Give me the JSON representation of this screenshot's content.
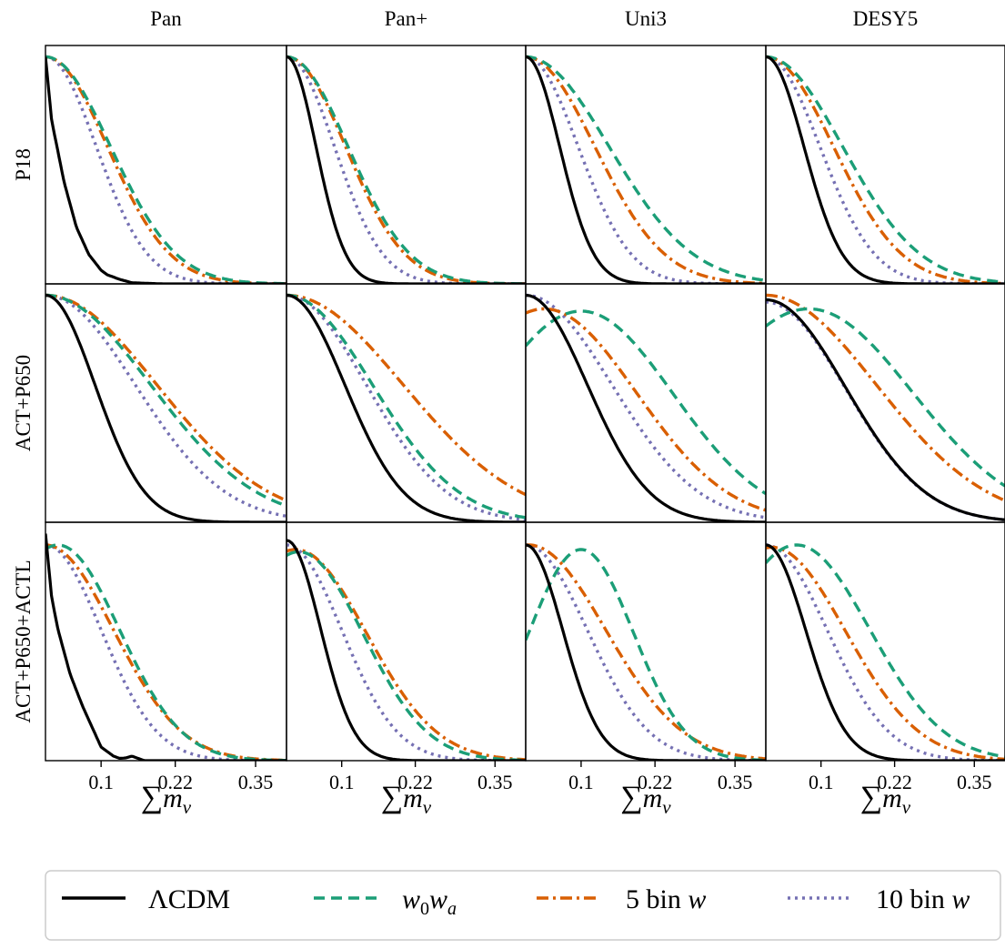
{
  "chart_data": {
    "type": "line",
    "columns": [
      "Pan",
      "Pan+",
      "Uni3",
      "DESY5"
    ],
    "rows": [
      "P18",
      "ACT+P650",
      "ACT+P650+ACTL"
    ],
    "xlabel": "∑m",
    "xlabel_sub": "ν",
    "xticks": [
      0.1,
      0.22,
      0.35
    ],
    "xtick_labels": [
      "0.1",
      "0.22",
      "0.35"
    ],
    "xlim": [
      0.01,
      0.4
    ],
    "ylim": [
      0,
      1.05
    ],
    "legend_position": "bottom",
    "series_styles": [
      {
        "key": "lcdm",
        "label": "ΛCDM",
        "color": "#000000",
        "dash": ""
      },
      {
        "key": "w0wa",
        "label": "w0wa",
        "color": "#1b9e77",
        "dash": "12,7"
      },
      {
        "key": "bin5",
        "label": "5 bin w",
        "color": "#d95f02",
        "dash": "13,5,3,5"
      },
      {
        "key": "bin10",
        "label": "10 bin w",
        "color": "#7570b3",
        "dash": "3,5"
      }
    ],
    "legend": {
      "lcdm": "ΛCDM",
      "w0wa_main": "w",
      "w0wa_sub1": "0",
      "w0wa_w2": "w",
      "w0wa_sub2": "a",
      "bin5_text": "5 bin ",
      "bin5_w": "w",
      "bin10_text": "10 bin ",
      "bin10_w": "w"
    },
    "panels": [
      [
        {
          "lcdm": {
            "type": "points",
            "x": [
              0.01,
              0.02,
              0.04,
              0.06,
              0.08,
              0.1,
              0.11,
              0.13,
              0.15,
              0.2
            ],
            "y": [
              1.0,
              0.72,
              0.45,
              0.25,
              0.13,
              0.06,
              0.04,
              0.02,
              0.005,
              0.0
            ]
          },
          "w0wa": {
            "type": "hn",
            "peak": 0.01,
            "sigma": 0.105,
            "amp": 1.0
          },
          "bin5": {
            "type": "hn",
            "peak": 0.01,
            "sigma": 0.1,
            "amp": 1.0
          },
          "bin10": {
            "type": "hn",
            "peak": 0.01,
            "sigma": 0.082,
            "amp": 1.0
          }
        },
        {
          "lcdm": {
            "type": "hn",
            "peak": 0.01,
            "sigma": 0.048,
            "amp": 1.0
          },
          "w0wa": {
            "type": "hn",
            "peak": 0.01,
            "sigma": 0.1,
            "amp": 1.0
          },
          "bin5": {
            "type": "hn",
            "peak": 0.01,
            "sigma": 0.096,
            "amp": 1.0
          },
          "bin10": {
            "type": "hn",
            "peak": 0.01,
            "sigma": 0.078,
            "amp": 1.0
          }
        },
        {
          "lcdm": {
            "type": "hn",
            "peak": 0.01,
            "sigma": 0.055,
            "amp": 1.0
          },
          "w0wa": {
            "type": "hn",
            "peak": 0.01,
            "sigma": 0.135,
            "amp": 1.0
          },
          "bin5": {
            "type": "hn",
            "peak": 0.01,
            "sigma": 0.112,
            "amp": 1.0
          },
          "bin10": {
            "type": "hn",
            "peak": 0.01,
            "sigma": 0.085,
            "amp": 1.0
          }
        },
        {
          "lcdm": {
            "type": "hn",
            "peak": 0.01,
            "sigma": 0.062,
            "amp": 1.0
          },
          "w0wa": {
            "type": "hn",
            "peak": 0.01,
            "sigma": 0.125,
            "amp": 1.0
          },
          "bin5": {
            "type": "hn",
            "peak": 0.01,
            "sigma": 0.11,
            "amp": 1.0
          },
          "bin10": {
            "type": "hn",
            "peak": 0.01,
            "sigma": 0.088,
            "amp": 1.0
          }
        }
      ],
      [
        {
          "lcdm": {
            "type": "hn",
            "peak": 0.01,
            "sigma": 0.08,
            "amp": 1.0
          },
          "w0wa": {
            "type": "hn",
            "peak": 0.01,
            "sigma": 0.17,
            "amp": 1.0
          },
          "bin5": {
            "type": "hn",
            "peak": 0.01,
            "sigma": 0.18,
            "amp": 1.0
          },
          "bin10": {
            "type": "hn",
            "peak": 0.01,
            "sigma": 0.145,
            "amp": 1.0
          }
        },
        {
          "lcdm": {
            "type": "hn",
            "peak": 0.01,
            "sigma": 0.095,
            "amp": 1.0
          },
          "w0wa": {
            "type": "hn",
            "peak": 0.01,
            "sigma": 0.14,
            "amp": 1.0
          },
          "bin5": {
            "type": "hn",
            "peak": 0.01,
            "sigma": 0.19,
            "amp": 1.0
          },
          "bin10": {
            "type": "hn",
            "peak": 0.01,
            "sigma": 0.13,
            "amp": 1.0
          }
        },
        {
          "lcdm": {
            "type": "hn",
            "peak": 0.01,
            "sigma": 0.1,
            "amp": 1.0
          },
          "w0wa": {
            "type": "g",
            "peak": 0.1,
            "sigma": 0.15,
            "amp": 0.93
          },
          "bin5": {
            "type": "g",
            "peak": 0.04,
            "sigma": 0.15,
            "amp": 0.94
          },
          "bin10": {
            "type": "hn",
            "peak": 0.01,
            "sigma": 0.14,
            "amp": 1.0
          }
        },
        {
          "lcdm": {
            "type": "g",
            "peak": 0.01,
            "sigma": 0.13,
            "amp": 0.98
          },
          "w0wa": {
            "type": "g",
            "peak": 0.08,
            "sigma": 0.17,
            "amp": 0.94
          },
          "bin5": {
            "type": "hn",
            "peak": 0.01,
            "sigma": 0.18,
            "amp": 1.0
          },
          "bin10": {
            "type": "hn",
            "peak": 0.01,
            "sigma": 0.13,
            "amp": 0.97
          }
        }
      ],
      [
        {
          "lcdm": {
            "type": "points",
            "x": [
              0.01,
              0.02,
              0.03,
              0.05,
              0.07,
              0.09,
              0.1,
              0.11,
              0.12,
              0.13,
              0.14,
              0.15,
              0.16,
              0.17
            ],
            "y": [
              1.0,
              0.72,
              0.58,
              0.38,
              0.24,
              0.12,
              0.06,
              0.04,
              0.02,
              0.01,
              0.012,
              0.02,
              0.01,
              0.0
            ]
          },
          "w0wa": {
            "type": "g",
            "peak": 0.03,
            "sigma": 0.1,
            "amp": 0.95
          },
          "bin5": {
            "type": "hn",
            "peak": 0.01,
            "sigma": 0.11,
            "amp": 0.95
          },
          "bin10": {
            "type": "hn",
            "peak": 0.01,
            "sigma": 0.09,
            "amp": 0.95
          }
        },
        {
          "lcdm": {
            "type": "hn",
            "peak": 0.01,
            "sigma": 0.055,
            "amp": 0.97
          },
          "w0wa": {
            "type": "g",
            "peak": 0.03,
            "sigma": 0.105,
            "amp": 0.92
          },
          "bin5": {
            "type": "g",
            "peak": 0.025,
            "sigma": 0.115,
            "amp": 0.93
          },
          "bin10": {
            "type": "hn",
            "peak": 0.01,
            "sigma": 0.09,
            "amp": 0.95
          }
        },
        {
          "lcdm": {
            "type": "hn",
            "peak": 0.01,
            "sigma": 0.06,
            "amp": 0.95
          },
          "w0wa": {
            "type": "g",
            "peak": 0.1,
            "sigma": 0.085,
            "amp": 0.93
          },
          "bin5": {
            "type": "g",
            "peak": 0.015,
            "sigma": 0.125,
            "amp": 0.95
          },
          "bin10": {
            "type": "hn",
            "peak": 0.01,
            "sigma": 0.1,
            "amp": 0.95
          }
        },
        {
          "lcdm": {
            "type": "hn",
            "peak": 0.01,
            "sigma": 0.065,
            "amp": 0.95
          },
          "w0wa": {
            "type": "g",
            "peak": 0.06,
            "sigma": 0.12,
            "amp": 0.95
          },
          "bin5": {
            "type": "g",
            "peak": 0.02,
            "sigma": 0.12,
            "amp": 0.94
          },
          "bin10": {
            "type": "hn",
            "peak": 0.01,
            "sigma": 0.1,
            "amp": 0.95
          }
        }
      ]
    ]
  }
}
